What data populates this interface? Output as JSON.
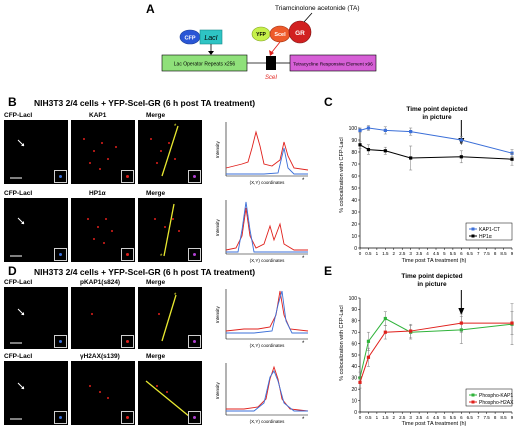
{
  "panelA": {
    "letter": "A",
    "cfp": "CFP",
    "laci": "LacI",
    "yfp": "YFP",
    "scei": "SceI",
    "gr": "GR",
    "ta_label": "Triamcinolone acetonide (TA)",
    "lac_box": "Lac Operator Repeats x256",
    "tet_box": "Tetracycline Responsive Element x96",
    "scei_site": "SceI"
  },
  "panelB": {
    "letter": "B",
    "title": "NIH3T3 2/4 cells + YFP-SceI-GR (6 h post TA treatment)",
    "row1": [
      "CFP-LacI",
      "KAP1",
      "Merge"
    ],
    "row2": [
      "CFP-LacI",
      "HP1α",
      "Merge"
    ],
    "intensity_label": "Intensity",
    "coord_label": "(X,Y) coordinates"
  },
  "panelD": {
    "letter": "D",
    "title": "NIH3T3 2/4 cells + YFP-SceI-GR (6 h post TA treatment)",
    "row1": [
      "CFP-LacI",
      "pKAP1(s824)",
      "Merge"
    ],
    "row2": [
      "CFP-LacI",
      "γH2AX(s139)",
      "Merge"
    ],
    "intensity_label": "Intensity",
    "coord_label": "(X,Y) coordinates"
  },
  "panelC": {
    "letter": "C",
    "annotation": "Time point depicted in picture",
    "ylabel": "% colocalization with CFP-LacI",
    "xlabel": "Time post TA treatment (h)"
  },
  "panelE": {
    "letter": "E",
    "annotation": "Time point depicted in picture",
    "ylabel": "% colocalization with CFP-LacI",
    "xlabel": "Time post TA treatment (h)"
  },
  "colors": {
    "blue": "#3b6fd8",
    "black": "#000000",
    "green": "#2fb33a",
    "red": "#e0201c",
    "lac_green": "#8fe07a",
    "tet_purple": "#d65fd6",
    "cfp": "#2a56d6",
    "laci": "#2ec4c4",
    "yfp": "#c6f04a",
    "gr": "#d12020"
  },
  "chart_data": [
    {
      "type": "line",
      "panel": "C",
      "x": [
        0,
        0.5,
        1,
        1.5,
        2,
        2.5,
        3,
        3.5,
        4,
        4.5,
        5,
        5.5,
        6,
        6.5,
        7,
        7.5,
        8,
        8.5,
        9
      ],
      "xticks": [
        "0",
        "0.5",
        "1",
        "1.5",
        "2",
        "2.5",
        "3",
        "3.5",
        "4",
        "4.5",
        "5",
        "5.5",
        "6",
        "6.5",
        "7",
        "7.5",
        "8",
        "8.5",
        "9"
      ],
      "yticks": [
        "0",
        "10",
        "20",
        "30",
        "40",
        "50",
        "60",
        "70",
        "80",
        "90",
        "100"
      ],
      "xlim": [
        0,
        9
      ],
      "ylim": [
        0,
        100
      ],
      "legend": "bottom-right",
      "annotation_x": 6,
      "series": [
        {
          "name": "KAP1-CT",
          "color": "#3b6fd8",
          "points": [
            [
              0,
              98
            ],
            [
              0.5,
              100
            ],
            [
              1.5,
              98
            ],
            [
              3,
              97
            ],
            [
              6,
              90
            ],
            [
              9,
              79
            ]
          ],
          "err": [
            2,
            2,
            3,
            3,
            3,
            3
          ]
        },
        {
          "name": "HP1α",
          "color": "#000000",
          "points": [
            [
              0,
              86
            ],
            [
              0.5,
              82
            ],
            [
              1.5,
              81
            ],
            [
              3,
              75
            ],
            [
              6,
              76
            ],
            [
              9,
              74
            ]
          ],
          "err": [
            3,
            4,
            3,
            10,
            5,
            5
          ]
        }
      ]
    },
    {
      "type": "line",
      "panel": "E",
      "x": [
        0,
        0.5,
        1,
        1.5,
        2,
        2.5,
        3,
        3.5,
        4,
        4.5,
        5,
        5.5,
        6,
        6.5,
        7,
        7.5,
        8,
        8.5,
        9
      ],
      "xticks": [
        "0",
        "0.5",
        "1",
        "1.5",
        "2",
        "2.5",
        "3",
        "3.5",
        "4",
        "4.5",
        "5",
        "5.5",
        "6",
        "6.5",
        "7",
        "7.5",
        "8",
        "8.5",
        "9"
      ],
      "yticks": [
        "0",
        "10",
        "20",
        "30",
        "40",
        "50",
        "60",
        "70",
        "80",
        "90",
        "100"
      ],
      "xlim": [
        0,
        9
      ],
      "ylim": [
        0,
        100
      ],
      "legend": "bottom-right",
      "annotation_x": 6,
      "series": [
        {
          "name": "Phospho-KAP1",
          "color": "#2fb33a",
          "points": [
            [
              0,
              30
            ],
            [
              0.5,
              62
            ],
            [
              1.5,
              82
            ],
            [
              3,
              70
            ],
            [
              6,
              72
            ],
            [
              9,
              77
            ]
          ],
          "err": [
            5,
            8,
            6,
            6,
            12,
            18
          ]
        },
        {
          "name": "Phospho-H2AX",
          "color": "#e0201c",
          "points": [
            [
              0,
              26
            ],
            [
              0.5,
              48
            ],
            [
              1.5,
              70
            ],
            [
              3,
              71
            ],
            [
              6,
              78
            ],
            [
              9,
              78
            ]
          ],
          "err": [
            5,
            8,
            6,
            6,
            8,
            10
          ]
        }
      ]
    }
  ]
}
